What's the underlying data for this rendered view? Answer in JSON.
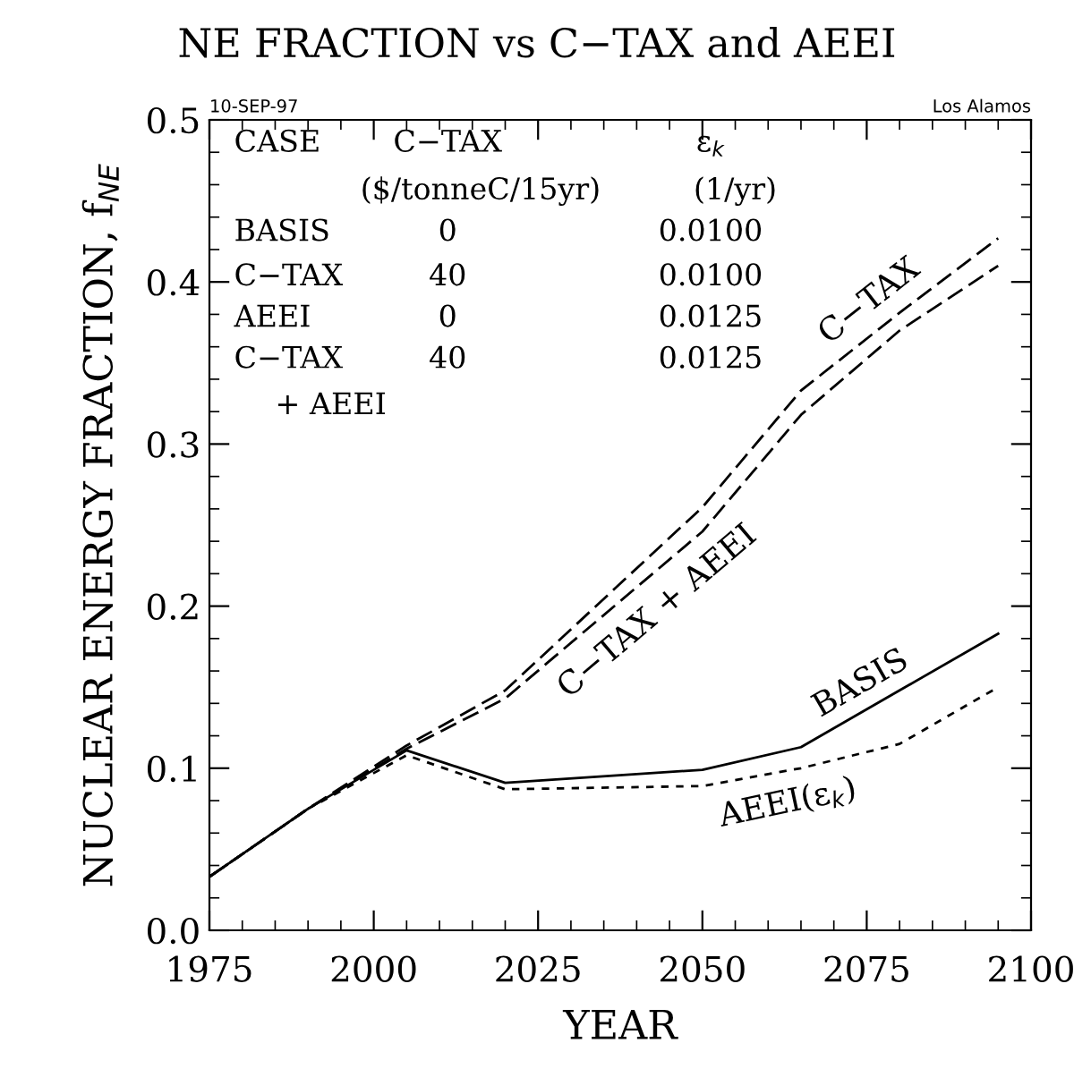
{
  "chart_data": {
    "type": "line",
    "title": "NE FRACTION vs C−TAX and AEEI",
    "xlabel": "YEAR",
    "ylabel": "NUCLEAR ENERGY FRACTION, f$_{NE}$",
    "x": [
      1975,
      1990,
      2005,
      2020,
      2050,
      2065,
      2080,
      2095
    ],
    "series": [
      {
        "name": "BASIS",
        "color": "#000000",
        "line_style": "solid",
        "values": [
          0.033,
          0.075,
          0.111,
          0.091,
          0.099,
          0.113,
          0.148,
          0.183
        ]
      },
      {
        "name": "C−TAX",
        "color": "#000000",
        "line_style": "dashed",
        "values": [
          0.033,
          0.075,
          0.114,
          0.148,
          0.261,
          0.333,
          0.381,
          0.427
        ]
      },
      {
        "name": "AEEI(ε$_{k}$)",
        "color": "#000000",
        "line_style": "dotted",
        "values": [
          0.033,
          0.075,
          0.108,
          0.087,
          0.089,
          0.1,
          0.115,
          0.15
        ]
      },
      {
        "name": "C−TAX + AEEI",
        "color": "#000000",
        "line_style": "dashed",
        "values": [
          0.033,
          0.075,
          0.112,
          0.143,
          0.246,
          0.318,
          0.37,
          0.41
        ]
      }
    ],
    "xlim": [
      1975,
      2100
    ],
    "xticks": [
      1975,
      2000,
      2025,
      2050,
      2075,
      2100
    ],
    "ylim": [
      0,
      0.5
    ],
    "yticks": [
      {
        "value": 0,
        "label": "0.0"
      },
      0.1,
      0.2,
      0.3,
      0.4,
      0.5
    ],
    "grid": false,
    "legend": false,
    "marker": "none",
    "annotations": [
      "10-SEP-97",
      "Los Alamos",
      "CASE",
      "C−TAX",
      "ε$_{k}$",
      "($/tonneC/15yr)",
      "(1/yr)",
      "BASIS",
      "0",
      "0.0100",
      "C−TAX",
      "40",
      "0.0100",
      "AEEI",
      "0",
      "0.0125",
      "C−TAX",
      "40",
      "0.0125",
      "+ AEEI"
    ]
  }
}
